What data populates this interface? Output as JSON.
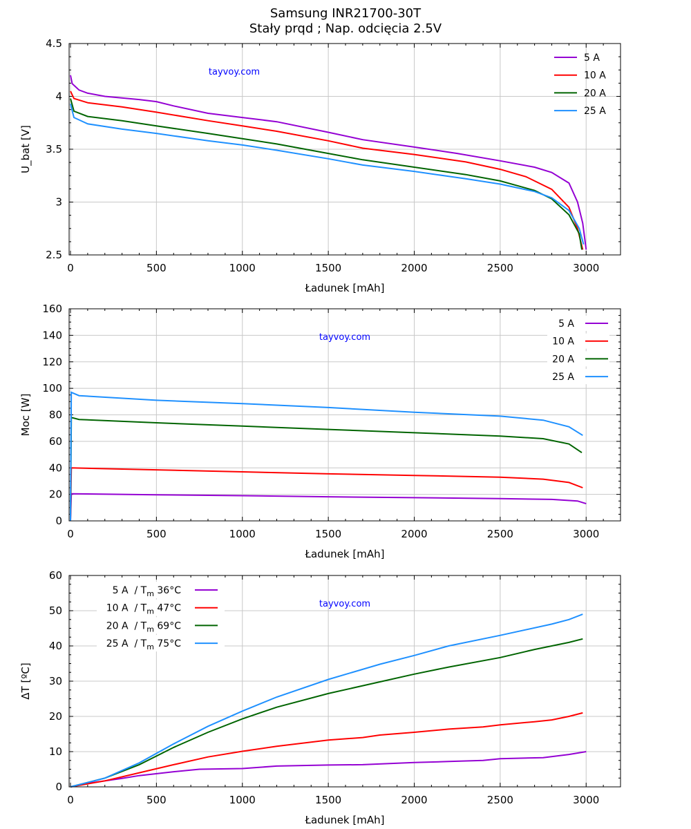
{
  "title": "Samsung INR21700-30T",
  "subtitle": "Stały prqd ; Nap. odcięcia 2.5V",
  "watermark": "tayvoy.com",
  "colors": {
    "5 A": "#9400d3",
    "10 A": "#ff0000",
    "20 A": "#006400",
    "25 A": "#1e90ff"
  },
  "chart_data": [
    {
      "type": "line",
      "id": "voltage",
      "xlabel": "Ładunek [mAh]",
      "ylabel": "U_bat [V]",
      "ylabel_main": "U",
      "ylabel_sub": "bat",
      "ylabel_rest": " [V]",
      "xlim": [
        0,
        3200
      ],
      "ylim": [
        2.5,
        4.5
      ],
      "xticks": [
        0,
        500,
        1000,
        1500,
        2000,
        2500,
        3000
      ],
      "yticks": [
        2.5,
        3,
        3.5,
        4,
        4.5
      ],
      "ytick_labels": [
        "2.5",
        "3",
        "3.5",
        "4",
        "4.5"
      ],
      "grid": true,
      "legend": "top-right",
      "legend_style": "line-first",
      "series": [
        {
          "name": "5 A",
          "points": [
            [
              0,
              4.2
            ],
            [
              10,
              4.12
            ],
            [
              50,
              4.06
            ],
            [
              100,
              4.03
            ],
            [
              200,
              4.0
            ],
            [
              400,
              3.97
            ],
            [
              500,
              3.95
            ],
            [
              600,
              3.91
            ],
            [
              800,
              3.84
            ],
            [
              1000,
              3.8
            ],
            [
              1200,
              3.76
            ],
            [
              1500,
              3.66
            ],
            [
              1700,
              3.59
            ],
            [
              2000,
              3.52
            ],
            [
              2250,
              3.46
            ],
            [
              2500,
              3.39
            ],
            [
              2700,
              3.33
            ],
            [
              2800,
              3.28
            ],
            [
              2900,
              3.18
            ],
            [
              2950,
              3.0
            ],
            [
              2980,
              2.8
            ],
            [
              3000,
              2.55
            ]
          ]
        },
        {
          "name": "10 A",
          "points": [
            [
              0,
              4.05
            ],
            [
              20,
              3.98
            ],
            [
              100,
              3.94
            ],
            [
              300,
              3.9
            ],
            [
              500,
              3.85
            ],
            [
              800,
              3.77
            ],
            [
              1000,
              3.72
            ],
            [
              1200,
              3.67
            ],
            [
              1500,
              3.58
            ],
            [
              1700,
              3.51
            ],
            [
              2000,
              3.45
            ],
            [
              2300,
              3.38
            ],
            [
              2500,
              3.31
            ],
            [
              2650,
              3.24
            ],
            [
              2800,
              3.12
            ],
            [
              2900,
              2.95
            ],
            [
              2950,
              2.75
            ],
            [
              2980,
              2.55
            ]
          ]
        },
        {
          "name": "20 A",
          "points": [
            [
              0,
              3.98
            ],
            [
              20,
              3.86
            ],
            [
              100,
              3.81
            ],
            [
              300,
              3.77
            ],
            [
              500,
              3.72
            ],
            [
              800,
              3.65
            ],
            [
              1000,
              3.6
            ],
            [
              1200,
              3.55
            ],
            [
              1500,
              3.46
            ],
            [
              1700,
              3.4
            ],
            [
              2000,
              3.33
            ],
            [
              2300,
              3.26
            ],
            [
              2500,
              3.2
            ],
            [
              2700,
              3.11
            ],
            [
              2800,
              3.03
            ],
            [
              2900,
              2.88
            ],
            [
              2960,
              2.7
            ],
            [
              2975,
              2.55
            ]
          ]
        },
        {
          "name": "25 A",
          "points": [
            [
              0,
              3.93
            ],
            [
              20,
              3.8
            ],
            [
              100,
              3.74
            ],
            [
              300,
              3.69
            ],
            [
              500,
              3.65
            ],
            [
              800,
              3.58
            ],
            [
              1000,
              3.54
            ],
            [
              1200,
              3.49
            ],
            [
              1500,
              3.41
            ],
            [
              1700,
              3.35
            ],
            [
              2000,
              3.29
            ],
            [
              2300,
              3.22
            ],
            [
              2500,
              3.17
            ],
            [
              2700,
              3.1
            ],
            [
              2800,
              3.04
            ],
            [
              2900,
              2.92
            ],
            [
              2960,
              2.75
            ],
            [
              2985,
              2.6
            ]
          ]
        }
      ]
    },
    {
      "type": "line",
      "id": "power",
      "xlabel": "Ładunek [mAh]",
      "ylabel": "Moc [W]",
      "xlim": [
        0,
        3200
      ],
      "ylim": [
        0,
        160
      ],
      "xticks": [
        0,
        500,
        1000,
        1500,
        2000,
        2500,
        3000
      ],
      "yticks": [
        0,
        20,
        40,
        60,
        80,
        100,
        120,
        140,
        160
      ],
      "ytick_labels": [
        "0",
        "20",
        "40",
        "60",
        "80",
        "100",
        "120",
        "140",
        "160"
      ],
      "grid": true,
      "legend": "top-right",
      "legend_style": "label-first",
      "series": [
        {
          "name": "5 A",
          "points": [
            [
              0,
              0
            ],
            [
              5,
              20.5
            ],
            [
              500,
              19.7
            ],
            [
              1000,
              19
            ],
            [
              1500,
              18.2
            ],
            [
              2000,
              17.5
            ],
            [
              2500,
              16.8
            ],
            [
              2800,
              16.2
            ],
            [
              2950,
              15
            ],
            [
              3000,
              13
            ]
          ]
        },
        {
          "name": "10 A",
          "points": [
            [
              0,
              0
            ],
            [
              5,
              40
            ],
            [
              500,
              38.5
            ],
            [
              1000,
              37
            ],
            [
              1500,
              35.5
            ],
            [
              2000,
              34.3
            ],
            [
              2500,
              33
            ],
            [
              2750,
              31.5
            ],
            [
              2900,
              29
            ],
            [
              2980,
              25
            ]
          ]
        },
        {
          "name": "20 A",
          "points": [
            [
              0,
              0
            ],
            [
              5,
              78
            ],
            [
              50,
              76.5
            ],
            [
              500,
              74
            ],
            [
              1000,
              71.5
            ],
            [
              1500,
              69
            ],
            [
              2000,
              66.5
            ],
            [
              2500,
              64
            ],
            [
              2750,
              62
            ],
            [
              2900,
              58
            ],
            [
              2975,
              51.5
            ]
          ]
        },
        {
          "name": "25 A",
          "points": [
            [
              0,
              0
            ],
            [
              5,
              97
            ],
            [
              50,
              94.5
            ],
            [
              500,
              91
            ],
            [
              1000,
              88.5
            ],
            [
              1500,
              85.5
            ],
            [
              2000,
              82
            ],
            [
              2500,
              79
            ],
            [
              2750,
              76
            ],
            [
              2900,
              71
            ],
            [
              2980,
              64.5
            ]
          ]
        }
      ]
    },
    {
      "type": "line",
      "id": "temperature",
      "xlabel": "Ładunek [mAh]",
      "ylabel": "ΔT [ºC]",
      "xlim": [
        0,
        3200
      ],
      "ylim": [
        0,
        60
      ],
      "xticks": [
        0,
        500,
        1000,
        1500,
        2000,
        2500,
        3000
      ],
      "yticks": [
        0,
        10,
        20,
        30,
        40,
        50,
        60
      ],
      "ytick_labels": [
        "0",
        "10",
        "20",
        "30",
        "40",
        "50",
        "60"
      ],
      "grid": true,
      "legend": "top-left",
      "legend_style": "label-first",
      "series": [
        {
          "name": "5 A",
          "legend_pre": "5 A  / T",
          "legend_sub": "m",
          "legend_post": " 36°C",
          "points": [
            [
              0,
              0
            ],
            [
              100,
              1
            ],
            [
              300,
              2.4
            ],
            [
              400,
              3.2
            ],
            [
              600,
              4.3
            ],
            [
              750,
              5
            ],
            [
              1000,
              5.2
            ],
            [
              1200,
              5.9
            ],
            [
              1500,
              6.2
            ],
            [
              1700,
              6.3
            ],
            [
              2000,
              6.9
            ],
            [
              2200,
              7.2
            ],
            [
              2400,
              7.5
            ],
            [
              2500,
              8
            ],
            [
              2750,
              8.3
            ],
            [
              2900,
              9.2
            ],
            [
              3000,
              10
            ]
          ]
        },
        {
          "name": "10 A",
          "legend_pre": "10 A  / T",
          "legend_sub": "m",
          "legend_post": " 47°C",
          "points": [
            [
              0,
              0
            ],
            [
              200,
              1.7
            ],
            [
              400,
              4
            ],
            [
              600,
              6.3
            ],
            [
              800,
              8.5
            ],
            [
              1000,
              10.1
            ],
            [
              1200,
              11.5
            ],
            [
              1500,
              13.3
            ],
            [
              1700,
              14
            ],
            [
              1800,
              14.7
            ],
            [
              2000,
              15.5
            ],
            [
              2200,
              16.4
            ],
            [
              2400,
              17
            ],
            [
              2500,
              17.6
            ],
            [
              2700,
              18.5
            ],
            [
              2800,
              19
            ],
            [
              2900,
              20
            ],
            [
              2980,
              21
            ]
          ]
        },
        {
          "name": "20 A",
          "legend_pre": "20 A  / T",
          "legend_sub": "m",
          "legend_post": " 69°C",
          "points": [
            [
              0,
              0
            ],
            [
              200,
              2.5
            ],
            [
              400,
              6.3
            ],
            [
              600,
              11.2
            ],
            [
              800,
              15.5
            ],
            [
              1000,
              19.3
            ],
            [
              1200,
              22.6
            ],
            [
              1500,
              26.5
            ],
            [
              1800,
              29.8
            ],
            [
              2000,
              32
            ],
            [
              2200,
              34
            ],
            [
              2500,
              36.7
            ],
            [
              2700,
              39
            ],
            [
              2900,
              41
            ],
            [
              2980,
              42
            ]
          ]
        },
        {
          "name": "25 A",
          "legend_pre": "25 A  / T",
          "legend_sub": "m",
          "legend_post": " 75°C",
          "points": [
            [
              0,
              0
            ],
            [
              200,
              2.5
            ],
            [
              400,
              6.8
            ],
            [
              600,
              12.2
            ],
            [
              800,
              17.2
            ],
            [
              1000,
              21.5
            ],
            [
              1200,
              25.5
            ],
            [
              1500,
              30.5
            ],
            [
              1800,
              34.8
            ],
            [
              2000,
              37.3
            ],
            [
              2200,
              40
            ],
            [
              2500,
              43
            ],
            [
              2800,
              46.2
            ],
            [
              2900,
              47.5
            ],
            [
              2980,
              49
            ]
          ]
        }
      ]
    }
  ]
}
